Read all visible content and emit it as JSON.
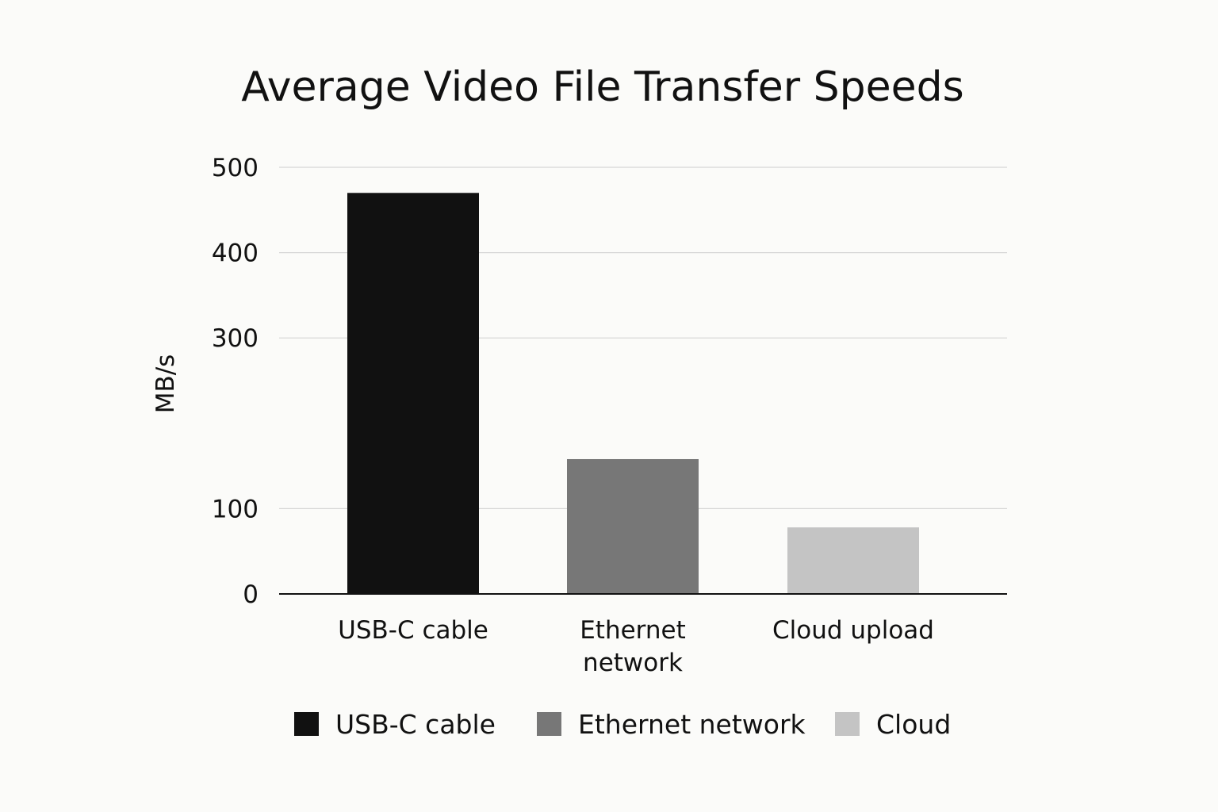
{
  "chart_data": {
    "type": "bar",
    "title": "Average Video File Transfer Speeds",
    "ylabel": "MB/s",
    "xlabel": "",
    "ylim": [
      0,
      500
    ],
    "yticks": [
      0,
      100,
      300,
      400,
      500
    ],
    "grid": true,
    "categories": [
      "USB-C cable",
      "Ethernet network",
      "Cloud upload"
    ],
    "category_label_lines": [
      [
        "USB-C cable"
      ],
      [
        "Ethernet",
        "network"
      ],
      [
        "Cloud upload"
      ]
    ],
    "values": [
      470,
      158,
      78
    ],
    "colors": [
      "#111111",
      "#777777",
      "#c4c4c4"
    ],
    "legend": {
      "placement": "bottom",
      "entries": [
        {
          "label": "USB-C cable",
          "color": "#111111"
        },
        {
          "label": "Ethernet network",
          "color": "#777777"
        },
        {
          "label": "Cloud",
          "color": "#c4c4c4"
        }
      ]
    }
  }
}
